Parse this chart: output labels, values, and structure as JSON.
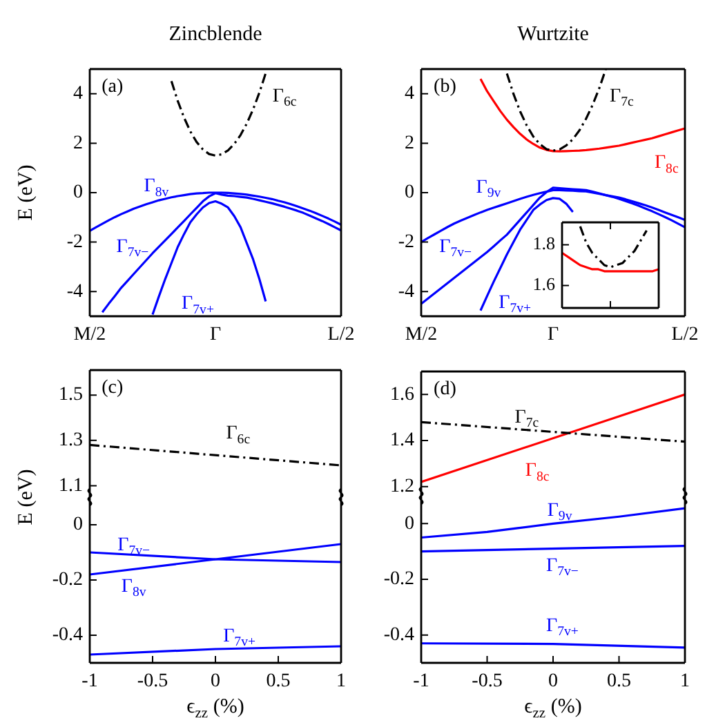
{
  "chart_data": [
    {
      "type": "line",
      "title": "Zincblende",
      "ylabel": "E (eV)",
      "marker": "none",
      "ylim": [
        -5,
        5
      ],
      "yticks": [
        -4,
        -2,
        0,
        2,
        4
      ],
      "categories": [
        "M/2",
        null,
        null,
        null,
        null,
        null,
        null,
        null,
        null,
        null,
        null,
        null,
        null,
        null,
        null,
        null,
        null,
        null,
        null,
        null,
        "Γ",
        null,
        null,
        null,
        null,
        null,
        null,
        null,
        null,
        null,
        null,
        null,
        null,
        null,
        null,
        null,
        null,
        null,
        null,
        null,
        "L/2"
      ],
      "annotations": [
        "(a)",
        "Γ$_{6c}$",
        "Γ$_{8v}$",
        "Γ$_{7v−}$",
        "Γ$_{7v+}$"
      ],
      "series": [
        {
          "color": "#000000",
          "line_style": "dashed",
          "values": [
            null,
            null,
            null,
            null,
            null,
            null,
            null,
            null,
            null,
            null,
            null,
            null,
            null,
            4.51,
            3.71,
            3.04,
            2.48,
            2.05,
            1.75,
            1.56,
            1.5,
            1.55,
            1.71,
            1.97,
            2.33,
            2.8,
            3.37,
            4.05,
            4.83,
            null,
            null,
            null,
            null,
            null,
            null,
            null,
            null,
            null,
            null,
            null,
            null
          ]
        },
        {
          "color": "#0000ff",
          "values": [
            -1.55,
            -1.4,
            -1.26,
            -1.12,
            -0.99,
            -0.87,
            -0.76,
            -0.65,
            -0.56,
            -0.47,
            -0.39,
            -0.31,
            -0.25,
            -0.19,
            -0.14,
            -0.1,
            -0.06,
            -0.03,
            -0.02,
            0,
            0,
            0,
            -0.01,
            -0.03,
            -0.05,
            -0.08,
            -0.12,
            -0.16,
            -0.21,
            -0.26,
            -0.33,
            -0.39,
            -0.47,
            -0.55,
            -0.64,
            -0.73,
            -0.83,
            -0.94,
            -1.05,
            -1.17,
            -1.3
          ]
        },
        {
          "color": "#0000ff",
          "values": [
            null,
            null,
            -4.84,
            -4.5,
            -4.18,
            -3.85,
            -3.57,
            -3.29,
            -3.01,
            -2.73,
            -2.45,
            -2.19,
            -1.93,
            -1.67,
            -1.41,
            -1.15,
            -0.88,
            -0.62,
            -0.35,
            -0.15,
            -0.02,
            -0.08,
            -0.12,
            -0.14,
            -0.17,
            -0.2,
            -0.25,
            -0.31,
            -0.37,
            -0.43,
            -0.5,
            -0.57,
            -0.65,
            -0.73,
            -0.82,
            -0.93,
            -1.04,
            -1.15,
            -1.27,
            -1.4,
            -1.53
          ]
        },
        {
          "color": "#0000ff",
          "values": [
            null,
            null,
            null,
            null,
            null,
            null,
            null,
            null,
            null,
            null,
            -4.93,
            -4.2,
            -3.5,
            -2.85,
            -2.2,
            -1.68,
            -1.2,
            -0.88,
            -0.6,
            -0.42,
            -0.35,
            -0.45,
            -0.6,
            -0.95,
            -1.4,
            -2.05,
            -2.7,
            -3.5,
            -4.4,
            null,
            null,
            null,
            null,
            null,
            null,
            null,
            null,
            null,
            null,
            null,
            null
          ]
        }
      ]
    },
    {
      "type": "line",
      "title": "Wurtzite",
      "marker": "none",
      "ylim": [
        -5,
        5
      ],
      "yticks": [
        -4,
        -2,
        0,
        2,
        4
      ],
      "categories": [
        "M/2",
        null,
        null,
        null,
        null,
        null,
        null,
        null,
        null,
        null,
        null,
        null,
        null,
        null,
        null,
        null,
        null,
        null,
        null,
        null,
        "Γ",
        null,
        null,
        null,
        null,
        null,
        null,
        null,
        null,
        null,
        null,
        null,
        null,
        null,
        null,
        null,
        null,
        null,
        null,
        null,
        "L/2"
      ],
      "annotations": [
        "(b)",
        "Γ$_{7c}$",
        "Γ$_{8c}$",
        "Γ$_{9v}$",
        "Γ$_{7v−}$",
        "Γ$_{7v+}$"
      ],
      "series": [
        {
          "color": "#000000",
          "line_style": "dashed",
          "values": [
            null,
            null,
            null,
            null,
            null,
            null,
            null,
            null,
            null,
            null,
            null,
            null,
            null,
            4.82,
            3.99,
            3.29,
            2.72,
            2.27,
            1.96,
            1.76,
            1.7,
            1.75,
            1.91,
            2.16,
            2.52,
            2.99,
            3.55,
            4.22,
            5.0,
            null,
            null,
            null,
            null,
            null,
            null,
            null,
            null,
            null,
            null,
            null,
            null
          ]
        },
        {
          "color": "#ff0000",
          "values": [
            null,
            null,
            null,
            null,
            null,
            null,
            null,
            null,
            null,
            4.6,
            4.1,
            3.7,
            3.3,
            2.95,
            2.65,
            2.38,
            2.15,
            1.97,
            1.82,
            1.73,
            1.68,
            1.67,
            1.68,
            1.69,
            1.7,
            1.72,
            1.75,
            1.78,
            1.82,
            1.86,
            1.9,
            1.96,
            2.02,
            2.08,
            2.14,
            2.2,
            2.28,
            2.36,
            2.44,
            2.52,
            2.6
          ]
        },
        {
          "color": "#0000ff",
          "values": [
            -2,
            -1.84,
            -1.69,
            -1.54,
            -1.39,
            -1.25,
            -1.13,
            -1.02,
            -0.91,
            -0.8,
            -0.7,
            -0.61,
            -0.52,
            -0.43,
            -0.34,
            -0.25,
            -0.17,
            -0.09,
            -0.02,
            0.04,
            0.1,
            0.1,
            0.09,
            0.08,
            0.06,
            0.05,
            0,
            -0.05,
            -0.1,
            -0.15,
            -0.2,
            -0.27,
            -0.35,
            -0.43,
            -0.51,
            -0.6,
            -0.7,
            -0.8,
            -0.9,
            -1.0,
            -1.1
          ]
        },
        {
          "color": "#0000ff",
          "values": [
            -4.5,
            -4.29,
            -4.08,
            -3.87,
            -3.66,
            -3.45,
            -3.24,
            -3.03,
            -2.82,
            -2.61,
            -2.4,
            -2.17,
            -1.93,
            -1.7,
            -1.4,
            -1.1,
            -0.8,
            -0.5,
            -0.2,
            0.02,
            0.2,
            0.18,
            0.16,
            0.14,
            0.12,
            0.1,
            0.04,
            -0.03,
            -0.1,
            -0.17,
            -0.25,
            -0.34,
            -0.43,
            -0.53,
            -0.64,
            -0.75,
            -0.87,
            -0.99,
            -1.12,
            -1.26,
            -1.4
          ]
        },
        {
          "color": "#0000ff",
          "values": [
            null,
            null,
            null,
            null,
            null,
            null,
            null,
            null,
            null,
            -4.77,
            -4.18,
            -3.6,
            -3.05,
            -2.5,
            -2.0,
            -1.5,
            -1.1,
            -0.7,
            -0.48,
            -0.3,
            -0.22,
            -0.25,
            -0.45,
            -0.78,
            null,
            null,
            null,
            null,
            null,
            null,
            null,
            null,
            null,
            null,
            null,
            null,
            null,
            null,
            null,
            null,
            null
          ]
        }
      ]
    },
    {
      "type": "line",
      "marker": "none",
      "ylim": [
        1.49,
        1.91
      ],
      "yticks": [
        1.6,
        1.8
      ],
      "categories": [
        null,
        null,
        null,
        null,
        null,
        null,
        null,
        null,
        null,
        null,
        null,
        null,
        null,
        null,
        null,
        null,
        null
      ],
      "series": [
        {
          "color": "#000000",
          "line_style": "dashed",
          "values": [
            null,
            null,
            null,
            1.89,
            1.81,
            1.76,
            1.73,
            1.7,
            1.69,
            1.7,
            1.71,
            1.74,
            1.77,
            1.82,
            1.87,
            null,
            null
          ]
        },
        {
          "color": "#ff0000",
          "values": [
            1.76,
            1.74,
            1.72,
            1.7,
            1.69,
            1.68,
            1.68,
            1.67,
            1.67,
            1.67,
            1.67,
            1.67,
            1.67,
            1.67,
            1.67,
            1.67,
            1.68
          ]
        }
      ]
    },
    {
      "type": "line",
      "marker": "none",
      "tick_labels": "y",
      "xlim": [
        -1,
        1
      ],
      "xticks": [
        -1,
        -0.5,
        0,
        0.5,
        1
      ],
      "ylim": [
        1.05,
        1.61
      ],
      "yticks": [
        1.1,
        1.3,
        1.5
      ],
      "annotations": [
        "(c)",
        "Γ$_{6c}$"
      ],
      "series": [
        {
          "color": "#000000",
          "line_style": "dashed",
          "x": [
            -1,
            1
          ],
          "values": [
            1.28,
            1.19
          ]
        }
      ]
    },
    {
      "type": "line",
      "ylabel": "E (eV)",
      "xlabel": "ϵ$_{zz}$ (%)",
      "marker": "none",
      "xlim": [
        -1,
        1
      ],
      "xticks": [
        -1,
        -0.5,
        0,
        0.5,
        1
      ],
      "ylim": [
        -0.5,
        0.1
      ],
      "yticks": [
        -0.4,
        -0.2,
        0
      ],
      "annotations": [
        "Γ$_{7v−}$",
        "Γ$_{8v}$",
        "Γ$_{7v+}$"
      ],
      "series": [
        {
          "color": "#0000ff",
          "x": [
            -1,
            0,
            1
          ],
          "values": [
            -0.1,
            -0.125,
            -0.135
          ]
        },
        {
          "color": "#0000ff",
          "x": [
            -1,
            0,
            1
          ],
          "values": [
            -0.18,
            -0.125,
            -0.07
          ]
        },
        {
          "color": "#0000ff",
          "x": [
            -1,
            0,
            1
          ],
          "values": [
            -0.47,
            -0.45,
            -0.44
          ]
        }
      ]
    },
    {
      "type": "line",
      "marker": "none",
      "tick_labels": "y",
      "xlim": [
        -1,
        1
      ],
      "xticks": [
        -1,
        -0.5,
        0,
        0.5,
        1
      ],
      "ylim": [
        1.16,
        1.7
      ],
      "yticks": [
        1.2,
        1.4,
        1.6
      ],
      "annotations": [
        "(d)",
        "Γ$_{7c}$",
        "Γ$_{8c}$"
      ],
      "series": [
        {
          "color": "#000000",
          "line_style": "dashed",
          "x": [
            -1,
            1
          ],
          "values": [
            1.48,
            1.395
          ]
        },
        {
          "color": "#ff0000",
          "x": [
            -1,
            1
          ],
          "values": [
            1.22,
            1.6
          ]
        }
      ]
    },
    {
      "type": "line",
      "xlabel": "ϵ$_{zz}$ (%)",
      "marker": "none",
      "xlim": [
        -1,
        1
      ],
      "xticks": [
        -1,
        -0.5,
        0,
        0.5,
        1
      ],
      "ylim": [
        -0.5,
        0.1
      ],
      "yticks": [
        -0.4,
        -0.2,
        0
      ],
      "annotations": [
        "Γ$_{9v}$",
        "Γ$_{7v−}$",
        "Γ$_{7v+}$"
      ],
      "series": [
        {
          "color": "#0000ff",
          "x": [
            -1,
            -0.5,
            0,
            0.5,
            1
          ],
          "values": [
            -0.05,
            -0.03,
            0,
            0.025,
            0.055
          ]
        },
        {
          "color": "#0000ff",
          "x": [
            -1,
            1
          ],
          "values": [
            -0.1,
            -0.08
          ]
        },
        {
          "color": "#0000ff",
          "x": [
            -1,
            0,
            1
          ],
          "values": [
            -0.43,
            -0.432,
            -0.445
          ]
        }
      ]
    }
  ]
}
